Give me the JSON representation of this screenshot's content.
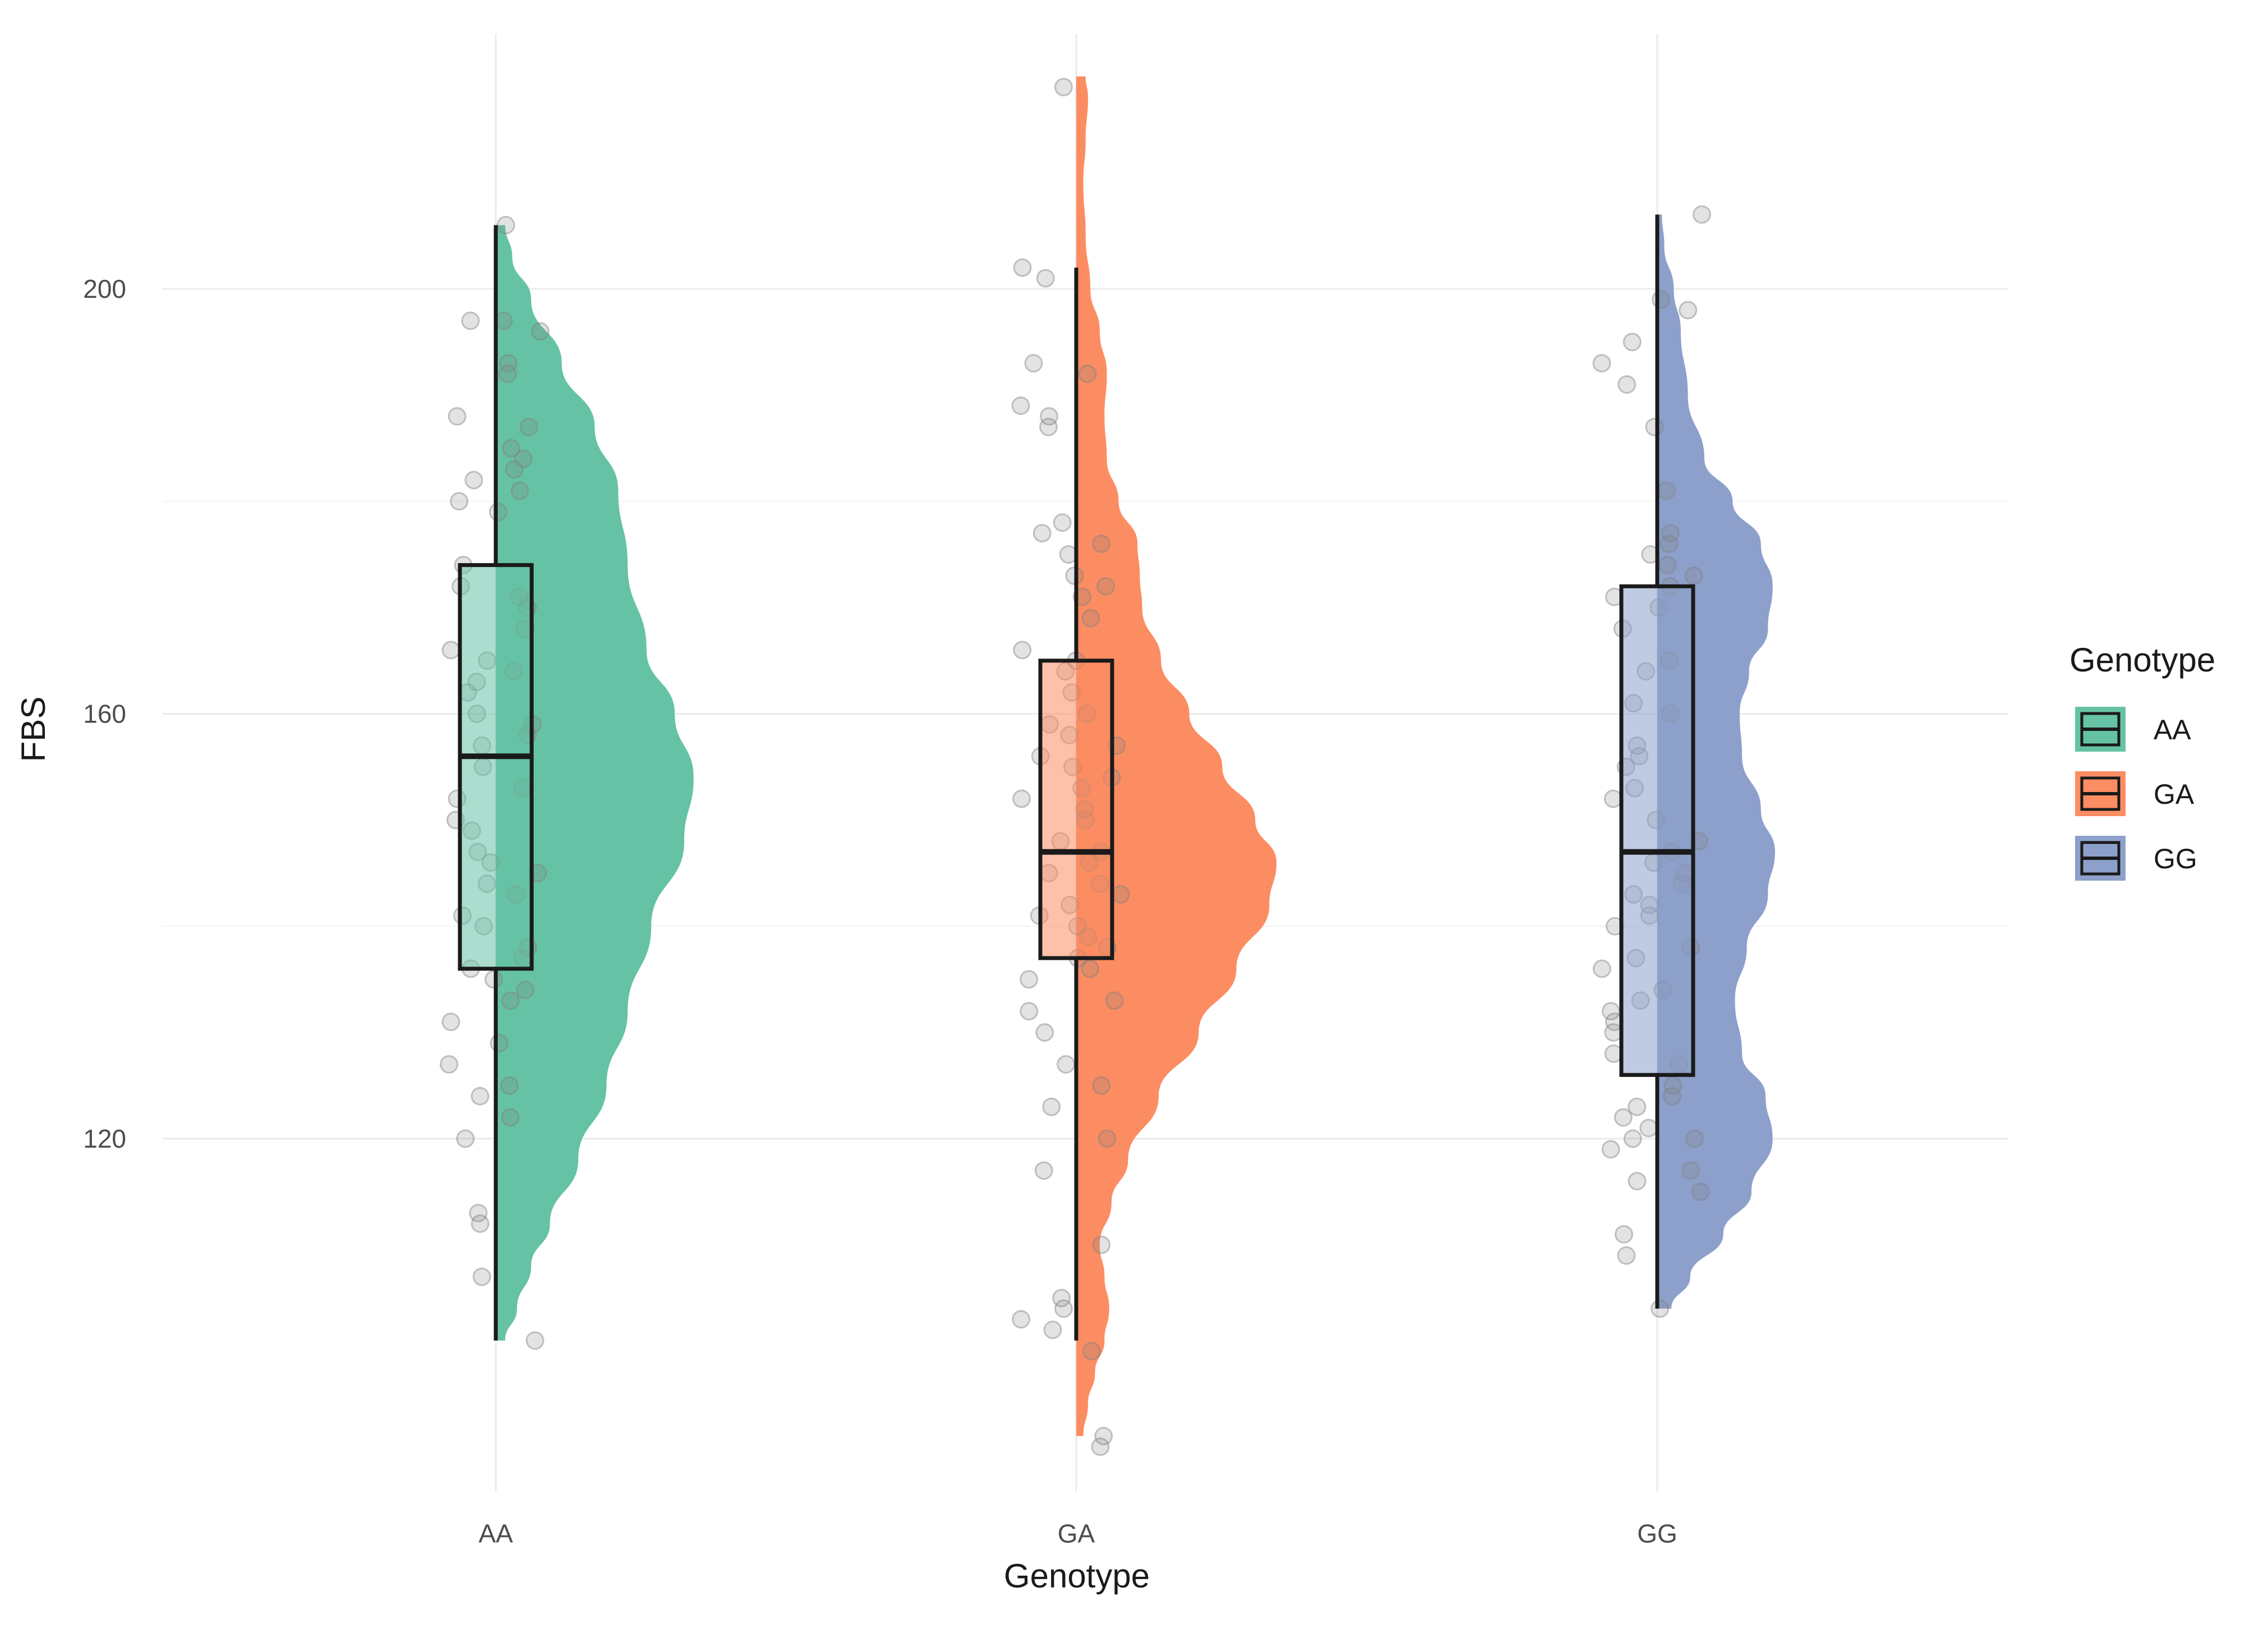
{
  "chart_data": {
    "type": "raincloud",
    "xlabel": "Genotype",
    "ylabel": "FBS",
    "categories": [
      "AA",
      "GA",
      "GG"
    ],
    "ylim": [
      90,
      227
    ],
    "yticks": [
      120,
      160,
      200
    ],
    "grid": true,
    "legend": {
      "title": "Genotype",
      "position": "right",
      "items": [
        "AA",
        "GA",
        "GG"
      ]
    },
    "colors": {
      "AA": "#66c2a5",
      "GA": "#fc8d62",
      "GG": "#8da0cb",
      "points": "#808080",
      "box_outline": "#1a1a1a"
    },
    "series": [
      {
        "name": "AA",
        "box": {
          "min": 101,
          "q1": 136,
          "median": 156,
          "q3": 174,
          "max": 206
        },
        "density": [
          [
            101,
            0.04
          ],
          [
            104,
            0.09
          ],
          [
            108,
            0.15
          ],
          [
            112,
            0.23
          ],
          [
            118,
            0.35
          ],
          [
            125,
            0.47
          ],
          [
            132,
            0.56
          ],
          [
            140,
            0.66
          ],
          [
            148,
            0.8
          ],
          [
            154,
            0.84
          ],
          [
            160,
            0.76
          ],
          [
            166,
            0.64
          ],
          [
            174,
            0.56
          ],
          [
            181,
            0.52
          ],
          [
            187,
            0.42
          ],
          [
            193,
            0.28
          ],
          [
            199,
            0.15
          ],
          [
            203,
            0.07
          ],
          [
            206,
            0.04
          ]
        ],
        "points": [
          206,
          197,
          197,
          196,
          193,
          192,
          188,
          187,
          185,
          184,
          183,
          182,
          181,
          180,
          179,
          174,
          172,
          171,
          170,
          168,
          166,
          165,
          164,
          163,
          162,
          160,
          159,
          158,
          157,
          155,
          153,
          152,
          150,
          149,
          147,
          146,
          145,
          144,
          143,
          141,
          140,
          138,
          137,
          136,
          135,
          134,
          133,
          131,
          129,
          127,
          125,
          124,
          122,
          120,
          113,
          112,
          107,
          101
        ]
      },
      {
        "name": "GA",
        "box": {
          "min": 101,
          "q1": 137,
          "median": 147,
          "q3": 165,
          "max": 202
        },
        "density": [
          [
            92,
            0.03
          ],
          [
            95,
            0.05
          ],
          [
            98,
            0.08
          ],
          [
            101,
            0.12
          ],
          [
            104,
            0.14
          ],
          [
            107,
            0.12
          ],
          [
            110,
            0.1
          ],
          [
            114,
            0.15
          ],
          [
            118,
            0.22
          ],
          [
            124,
            0.35
          ],
          [
            130,
            0.52
          ],
          [
            136,
            0.68
          ],
          [
            142,
            0.82
          ],
          [
            146,
            0.85
          ],
          [
            150,
            0.76
          ],
          [
            155,
            0.62
          ],
          [
            160,
            0.48
          ],
          [
            165,
            0.36
          ],
          [
            170,
            0.28
          ],
          [
            173,
            0.27
          ],
          [
            176,
            0.26
          ],
          [
            180,
            0.18
          ],
          [
            184,
            0.13
          ],
          [
            188,
            0.12
          ],
          [
            192,
            0.13
          ],
          [
            196,
            0.1
          ],
          [
            200,
            0.06
          ],
          [
            205,
            0.04
          ],
          [
            210,
            0.03
          ],
          [
            214,
            0.04
          ],
          [
            218,
            0.05
          ],
          [
            220,
            0.04
          ]
        ],
        "points": [
          219,
          202,
          201,
          193,
          192,
          189,
          188,
          187,
          178,
          177,
          176,
          175,
          173,
          172,
          171,
          169,
          166,
          165,
          164,
          162,
          160,
          159,
          158,
          157,
          156,
          155,
          154,
          153,
          152,
          151,
          150,
          148,
          147,
          146,
          145,
          144,
          143,
          142,
          141,
          140,
          139,
          138,
          137,
          136,
          135,
          133,
          132,
          130,
          127,
          125,
          123,
          120,
          117,
          110,
          105,
          104,
          103,
          102,
          100,
          92,
          91
        ]
      },
      {
        "name": "GG",
        "box": {
          "min": 104,
          "q1": 126,
          "median": 147,
          "q3": 172,
          "max": 207
        },
        "density": [
          [
            104,
            0.06
          ],
          [
            107,
            0.14
          ],
          [
            111,
            0.28
          ],
          [
            115,
            0.4
          ],
          [
            120,
            0.49
          ],
          [
            124,
            0.46
          ],
          [
            128,
            0.36
          ],
          [
            133,
            0.33
          ],
          [
            138,
            0.38
          ],
          [
            143,
            0.47
          ],
          [
            147,
            0.5
          ],
          [
            151,
            0.44
          ],
          [
            156,
            0.36
          ],
          [
            160,
            0.35
          ],
          [
            164,
            0.39
          ],
          [
            168,
            0.47
          ],
          [
            172,
            0.49
          ],
          [
            176,
            0.44
          ],
          [
            180,
            0.32
          ],
          [
            184,
            0.2
          ],
          [
            190,
            0.13
          ],
          [
            196,
            0.1
          ],
          [
            200,
            0.07
          ],
          [
            204,
            0.03
          ],
          [
            207,
            0.02
          ]
        ],
        "points": [
          207,
          199,
          198,
          195,
          193,
          191,
          187,
          181,
          177,
          176,
          175,
          174,
          173,
          172,
          171,
          170,
          168,
          165,
          164,
          161,
          160,
          157,
          156,
          155,
          153,
          152,
          150,
          148,
          147,
          146,
          145,
          144,
          143,
          142,
          141,
          140,
          138,
          137,
          136,
          134,
          133,
          132,
          131,
          130,
          128,
          127,
          125,
          124,
          123,
          122,
          121,
          120,
          120,
          119,
          117,
          116,
          115,
          111,
          109,
          104
        ]
      }
    ]
  }
}
